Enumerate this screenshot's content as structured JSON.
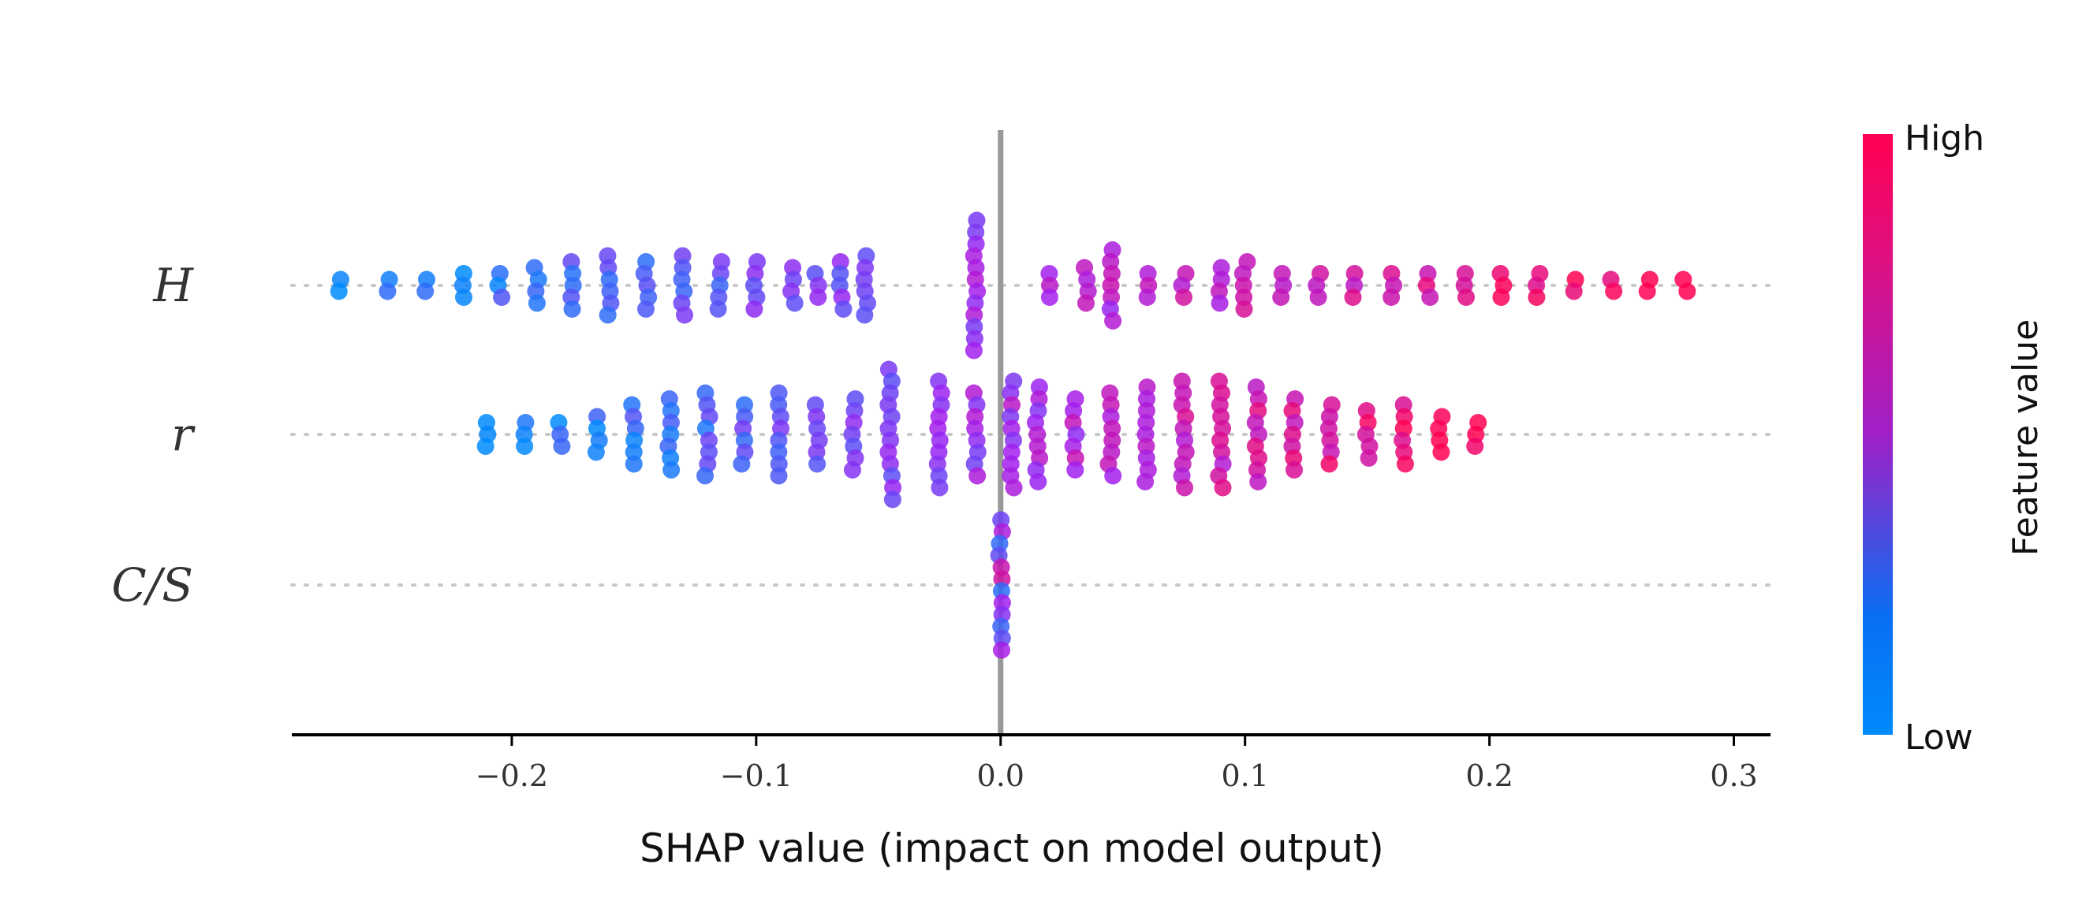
{
  "chart_data": {
    "type": "scatter",
    "subtype": "shap-beeswarm",
    "title": "",
    "xlabel": "SHAP value (impact on model output)",
    "xlim": [
      -0.29,
      0.315
    ],
    "xticks": [
      -0.2,
      -0.1,
      0.0,
      0.1,
      0.2,
      0.3
    ],
    "xtick_labels": [
      "−0.2",
      "−0.1",
      "0.0",
      "0.1",
      "0.2",
      "0.3"
    ],
    "features": [
      "H",
      "r",
      "C/S"
    ],
    "feature_labels": [
      "H",
      "r",
      "C/S"
    ],
    "colorbar": {
      "title": "Feature value",
      "high_label": "High",
      "low_label": "Low",
      "low_color": "#008bfb",
      "mid_color": "#a020f0",
      "high_color": "#ff0052"
    },
    "grid": "dotted horizontal row lines",
    "zero_line": 0.0,
    "series": [
      {
        "name": "H",
        "density": [
          {
            "x": -0.27,
            "n": 2
          },
          {
            "x": -0.25,
            "n": 2
          },
          {
            "x": -0.235,
            "n": 2
          },
          {
            "x": -0.22,
            "n": 3
          },
          {
            "x": -0.205,
            "n": 3
          },
          {
            "x": -0.19,
            "n": 4
          },
          {
            "x": -0.175,
            "n": 5
          },
          {
            "x": -0.16,
            "n": 6
          },
          {
            "x": -0.145,
            "n": 5
          },
          {
            "x": -0.13,
            "n": 6
          },
          {
            "x": -0.115,
            "n": 5
          },
          {
            "x": -0.1,
            "n": 5
          },
          {
            "x": -0.085,
            "n": 4
          },
          {
            "x": -0.075,
            "n": 3
          },
          {
            "x": -0.065,
            "n": 5
          },
          {
            "x": -0.055,
            "n": 6
          },
          {
            "x": -0.01,
            "n": 12
          },
          {
            "x": 0.02,
            "n": 3
          },
          {
            "x": 0.035,
            "n": 4
          },
          {
            "x": 0.045,
            "n": 7
          },
          {
            "x": 0.06,
            "n": 3
          },
          {
            "x": 0.075,
            "n": 3
          },
          {
            "x": 0.09,
            "n": 4
          },
          {
            "x": 0.1,
            "n": 5
          },
          {
            "x": 0.115,
            "n": 3
          },
          {
            "x": 0.13,
            "n": 3
          },
          {
            "x": 0.145,
            "n": 3
          },
          {
            "x": 0.16,
            "n": 3
          },
          {
            "x": 0.175,
            "n": 3
          },
          {
            "x": 0.19,
            "n": 3
          },
          {
            "x": 0.205,
            "n": 3
          },
          {
            "x": 0.22,
            "n": 3
          },
          {
            "x": 0.235,
            "n": 2
          },
          {
            "x": 0.25,
            "n": 2
          },
          {
            "x": 0.265,
            "n": 2
          },
          {
            "x": 0.28,
            "n": 2
          }
        ]
      },
      {
        "name": "r",
        "density": [
          {
            "x": -0.21,
            "n": 3
          },
          {
            "x": -0.195,
            "n": 3
          },
          {
            "x": -0.18,
            "n": 3
          },
          {
            "x": -0.165,
            "n": 4
          },
          {
            "x": -0.15,
            "n": 6
          },
          {
            "x": -0.135,
            "n": 7
          },
          {
            "x": -0.12,
            "n": 8
          },
          {
            "x": -0.105,
            "n": 6
          },
          {
            "x": -0.09,
            "n": 8
          },
          {
            "x": -0.075,
            "n": 6
          },
          {
            "x": -0.06,
            "n": 7
          },
          {
            "x": -0.045,
            "n": 12
          },
          {
            "x": -0.025,
            "n": 10
          },
          {
            "x": -0.01,
            "n": 8
          },
          {
            "x": 0.005,
            "n": 10
          },
          {
            "x": 0.015,
            "n": 9
          },
          {
            "x": 0.03,
            "n": 7
          },
          {
            "x": 0.045,
            "n": 8
          },
          {
            "x": 0.06,
            "n": 9
          },
          {
            "x": 0.075,
            "n": 10
          },
          {
            "x": 0.09,
            "n": 10
          },
          {
            "x": 0.105,
            "n": 9
          },
          {
            "x": 0.12,
            "n": 7
          },
          {
            "x": 0.135,
            "n": 6
          },
          {
            "x": 0.15,
            "n": 5
          },
          {
            "x": 0.165,
            "n": 6
          },
          {
            "x": 0.18,
            "n": 4
          },
          {
            "x": 0.195,
            "n": 3
          }
        ]
      },
      {
        "name": "C/S",
        "density": [
          {
            "x": 0.0,
            "n": 12
          }
        ]
      }
    ]
  }
}
